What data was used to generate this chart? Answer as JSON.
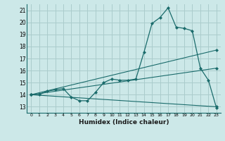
{
  "title": "",
  "xlabel": "Humidex (Indice chaleur)",
  "ylabel": "",
  "background_color": "#cce8e8",
  "grid_color": "#aacccc",
  "line_color": "#1a6b6b",
  "xlim": [
    -0.5,
    23.5
  ],
  "ylim": [
    12.5,
    21.5
  ],
  "xticks": [
    0,
    1,
    2,
    3,
    4,
    5,
    6,
    7,
    8,
    9,
    10,
    11,
    12,
    13,
    14,
    15,
    16,
    17,
    18,
    19,
    20,
    21,
    22,
    23
  ],
  "yticks": [
    13,
    14,
    15,
    16,
    17,
    18,
    19,
    20,
    21
  ],
  "series": [
    {
      "x": [
        0,
        1,
        2,
        3,
        4,
        5,
        6,
        7,
        8,
        9,
        10,
        11,
        12,
        13,
        14,
        15,
        16,
        17,
        18,
        19,
        20,
        21,
        22,
        23
      ],
      "y": [
        14,
        14,
        14.3,
        14.4,
        14.5,
        13.8,
        13.5,
        13.5,
        14.2,
        15.0,
        15.3,
        15.2,
        15.2,
        15.3,
        17.5,
        19.9,
        20.4,
        21.2,
        19.6,
        19.5,
        19.3,
        16.2,
        15.2,
        12.9
      ]
    },
    {
      "x": [
        0,
        23
      ],
      "y": [
        14.0,
        17.7
      ]
    },
    {
      "x": [
        0,
        23
      ],
      "y": [
        14.0,
        16.2
      ]
    },
    {
      "x": [
        0,
        23
      ],
      "y": [
        14.0,
        13.0
      ]
    }
  ]
}
